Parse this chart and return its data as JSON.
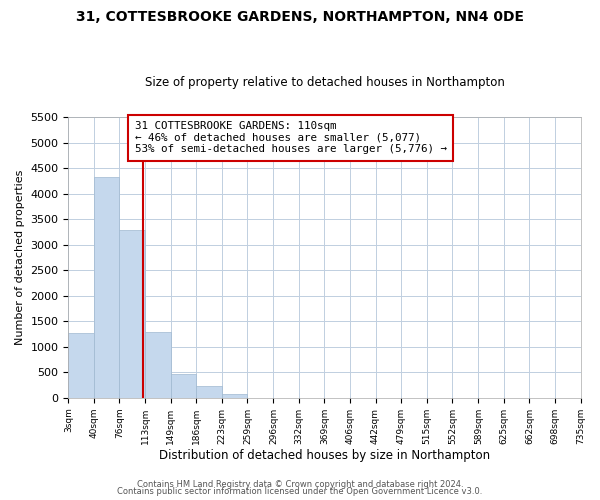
{
  "title": "31, COTTESBROOKE GARDENS, NORTHAMPTON, NN4 0DE",
  "subtitle": "Size of property relative to detached houses in Northampton",
  "xlabel": "Distribution of detached houses by size in Northampton",
  "ylabel": "Number of detached properties",
  "bar_color": "#c5d8ed",
  "bar_edge_color": "#a0b8d0",
  "vline_x": 110,
  "vline_color": "#cc0000",
  "annotation_title": "31 COTTESBROOKE GARDENS: 110sqm",
  "annotation_line1": "← 46% of detached houses are smaller (5,077)",
  "annotation_line2": "53% of semi-detached houses are larger (5,776) →",
  "annotation_box_edge": "#cc0000",
  "bins": [
    3,
    40,
    76,
    113,
    149,
    186,
    223,
    259,
    296,
    332,
    369,
    406,
    442,
    479,
    515,
    552,
    589,
    625,
    662,
    698,
    735
  ],
  "counts": [
    1270,
    4330,
    3295,
    1290,
    475,
    235,
    75,
    0,
    0,
    0,
    0,
    0,
    0,
    0,
    0,
    0,
    0,
    0,
    0,
    0
  ],
  "ylim": [
    0,
    5500
  ],
  "yticks": [
    0,
    500,
    1000,
    1500,
    2000,
    2500,
    3000,
    3500,
    4000,
    4500,
    5000,
    5500
  ],
  "footer1": "Contains HM Land Registry data © Crown copyright and database right 2024.",
  "footer2": "Contains public sector information licensed under the Open Government Licence v3.0."
}
